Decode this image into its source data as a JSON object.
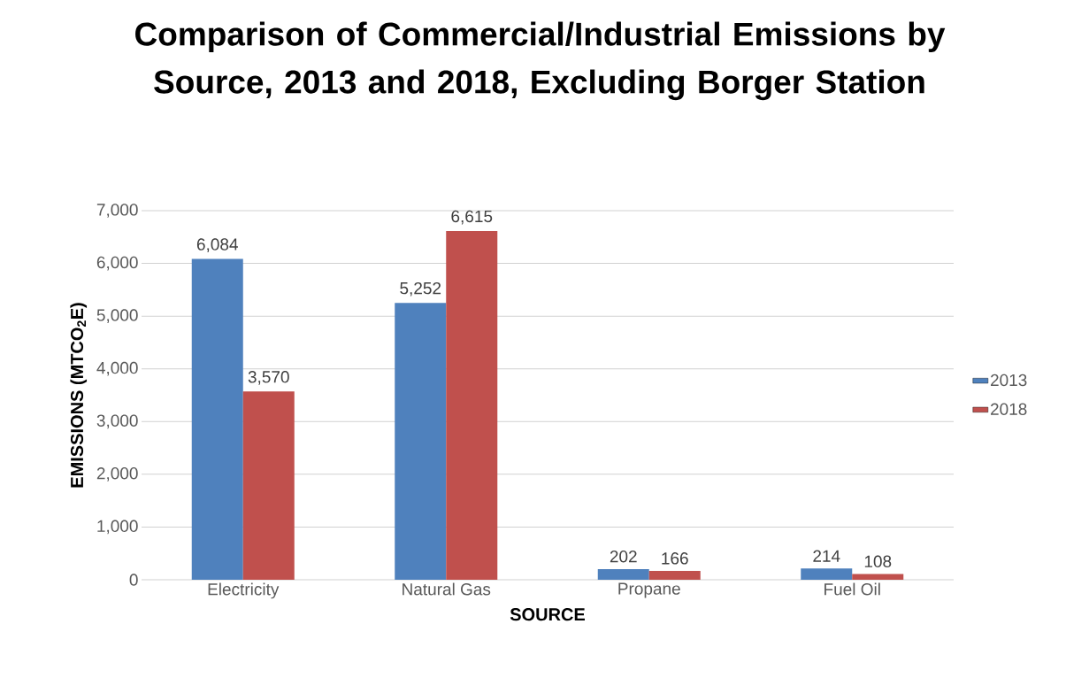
{
  "chart_data": {
    "type": "bar",
    "title": "Comparison of Commercial/Industrial Emissions by Source, 2013 and 2018, Excluding Borger Station",
    "xlabel": "SOURCE",
    "ylabel": "EMISSIONS (MTCO$_{2}$E)",
    "categories": [
      "Electricity",
      "Natural Gas",
      "Propane",
      "Fuel Oil"
    ],
    "series": [
      {
        "name": "2013",
        "color": "#4f81bd",
        "values": [
          6084,
          5252,
          202,
          214
        ],
        "value_labels": [
          "6,084",
          "5,252",
          "202",
          "214"
        ]
      },
      {
        "name": "2018",
        "color": "#c0504d",
        "values": [
          3570,
          6615,
          166,
          108
        ],
        "value_labels": [
          "3,570",
          "6,615",
          "166",
          "108"
        ]
      }
    ],
    "ylim": [
      0,
      7000
    ],
    "yticks": [
      0,
      {
        "value": 1000,
        "label": "1,000"
      },
      {
        "value": 2000,
        "label": "2,000"
      },
      {
        "value": 3000,
        "label": "3,000"
      },
      {
        "value": 4000,
        "label": "4,000"
      },
      {
        "value": 5000,
        "label": "5,000"
      },
      {
        "value": 6000,
        "label": "6,000"
      },
      {
        "value": 7000,
        "label": "7,000"
      }
    ],
    "grid": "y",
    "legend": "right"
  }
}
